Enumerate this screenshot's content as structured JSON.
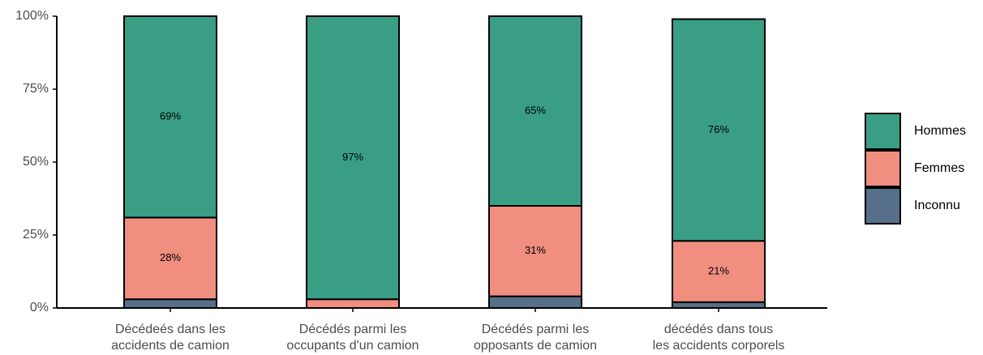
{
  "chart_data": {
    "type": "stacked_bar",
    "categories": [
      [
        "Décédeés dans les",
        "accidents de camion"
      ],
      [
        "Décédés parmi les",
        "occupants d'un camion"
      ],
      [
        "Décédés parmi les",
        "opposants de camion"
      ],
      [
        "décédés dans tous",
        "les accidents corporels"
      ]
    ],
    "series": [
      {
        "name": "Inconnu",
        "color": "#557088",
        "values": [
          3,
          0,
          4,
          2
        ],
        "value_labels": [
          null,
          null,
          null,
          null
        ]
      },
      {
        "name": "Femmes",
        "color": "#f08e80",
        "values": [
          28,
          3,
          31,
          21
        ],
        "value_labels": [
          "28%",
          null,
          "31%",
          "21%"
        ]
      },
      {
        "name": "Hommes",
        "color": "#3a9e85",
        "values": [
          69,
          97,
          65,
          76
        ],
        "value_labels": [
          "69%",
          "97%",
          "65%",
          "76%"
        ]
      }
    ],
    "ylim": [
      0,
      100
    ],
    "yticks": [
      {
        "value": 0,
        "label": "0%"
      },
      {
        "value": 25,
        "label": "25%"
      },
      {
        "value": 50,
        "label": "50%"
      },
      {
        "value": 75,
        "label": "75%"
      },
      {
        "value": 100,
        "label": "100%"
      }
    ],
    "grid": false,
    "legend": "right"
  }
}
